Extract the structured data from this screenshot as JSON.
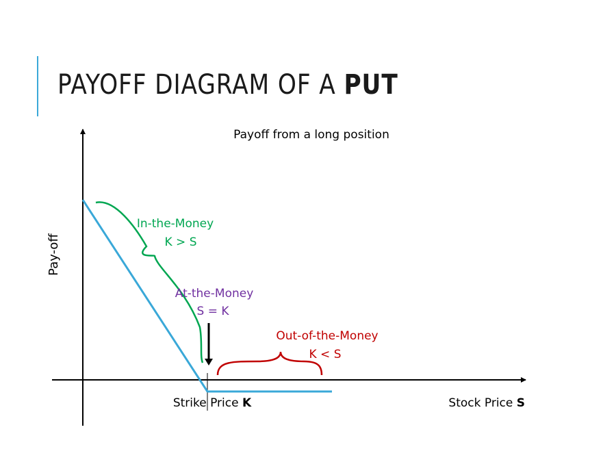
{
  "slide": {
    "title_prefix": "PAYOFF DIAGRAM OF A ",
    "title_emphasis": "PUT"
  },
  "diagram": {
    "subtitle": "Payoff from a long position",
    "y_axis_label": "Pay-off",
    "x_axis_label_prefix": "Stock Price ",
    "x_axis_label_emphasis": "S",
    "strike_label_prefix": "Strike Price ",
    "strike_label_emphasis": "K",
    "in_the_money": {
      "label": "In-the-Money",
      "condition": "K > S",
      "color": "#00a651"
    },
    "at_the_money": {
      "label": "At-the-Money",
      "condition": "S = K",
      "color": "#7030a0"
    },
    "out_of_the_money": {
      "label": "Out-of-the-Money",
      "condition": "K < S",
      "color": "#c00000"
    },
    "payoff_line_color": "#3aa8d8",
    "axis_color": "#000000"
  }
}
